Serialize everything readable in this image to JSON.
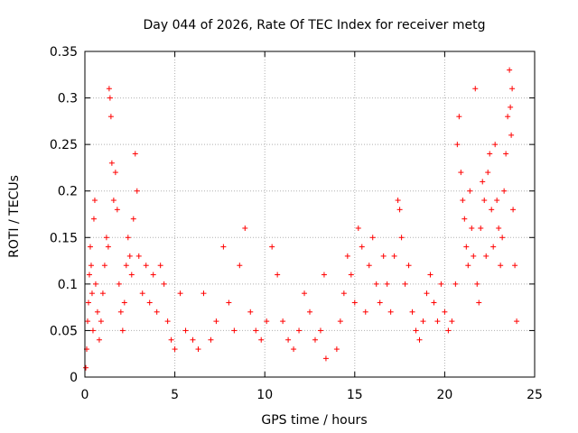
{
  "chart_data": {
    "type": "scatter",
    "title": "Day 044 of 2026, Rate Of TEC Index for receiver metg",
    "xlabel": "GPS time / hours",
    "ylabel": "ROTI / TECUs",
    "xlim": [
      0,
      25
    ],
    "ylim": [
      0,
      0.35
    ],
    "xticks": [
      0,
      5,
      10,
      15,
      20,
      25
    ],
    "yticks": [
      0,
      0.05,
      0.1,
      0.15,
      0.2,
      0.25,
      0.3,
      0.35
    ],
    "grid": true,
    "marker": "+",
    "color": "#ff0000",
    "series": [
      {
        "points": [
          [
            0.05,
            0.01
          ],
          [
            0.1,
            0.03
          ],
          [
            0.15,
            0.06
          ],
          [
            0.2,
            0.08
          ],
          [
            0.25,
            0.11
          ],
          [
            0.3,
            0.14
          ],
          [
            0.35,
            0.12
          ],
          [
            0.4,
            0.09
          ],
          [
            0.45,
            0.05
          ],
          [
            0.5,
            0.17
          ],
          [
            0.55,
            0.19
          ],
          [
            0.6,
            0.1
          ],
          [
            0.7,
            0.07
          ],
          [
            0.8,
            0.04
          ],
          [
            0.9,
            0.06
          ],
          [
            1.0,
            0.09
          ],
          [
            1.1,
            0.12
          ],
          [
            1.2,
            0.15
          ],
          [
            1.3,
            0.14
          ],
          [
            1.35,
            0.31
          ],
          [
            1.4,
            0.3
          ],
          [
            1.45,
            0.28
          ],
          [
            1.5,
            0.23
          ],
          [
            1.6,
            0.19
          ],
          [
            1.7,
            0.22
          ],
          [
            1.8,
            0.18
          ],
          [
            1.9,
            0.1
          ],
          [
            2.0,
            0.07
          ],
          [
            2.1,
            0.05
          ],
          [
            2.2,
            0.08
          ],
          [
            2.3,
            0.12
          ],
          [
            2.4,
            0.15
          ],
          [
            2.5,
            0.13
          ],
          [
            2.6,
            0.11
          ],
          [
            2.7,
            0.17
          ],
          [
            2.8,
            0.24
          ],
          [
            2.9,
            0.2
          ],
          [
            3.0,
            0.13
          ],
          [
            3.2,
            0.09
          ],
          [
            3.4,
            0.12
          ],
          [
            3.6,
            0.08
          ],
          [
            3.8,
            0.11
          ],
          [
            4.0,
            0.07
          ],
          [
            4.2,
            0.12
          ],
          [
            4.4,
            0.1
          ],
          [
            4.6,
            0.06
          ],
          [
            4.8,
            0.04
          ],
          [
            5.0,
            0.03
          ],
          [
            5.3,
            0.09
          ],
          [
            5.6,
            0.05
          ],
          [
            6.0,
            0.04
          ],
          [
            6.3,
            0.03
          ],
          [
            6.6,
            0.09
          ],
          [
            7.0,
            0.04
          ],
          [
            7.3,
            0.06
          ],
          [
            7.7,
            0.14
          ],
          [
            8.0,
            0.08
          ],
          [
            8.3,
            0.05
          ],
          [
            8.6,
            0.12
          ],
          [
            8.9,
            0.16
          ],
          [
            9.2,
            0.07
          ],
          [
            9.5,
            0.05
          ],
          [
            9.8,
            0.04
          ],
          [
            10.1,
            0.06
          ],
          [
            10.4,
            0.14
          ],
          [
            10.7,
            0.11
          ],
          [
            11.0,
            0.06
          ],
          [
            11.3,
            0.04
          ],
          [
            11.6,
            0.03
          ],
          [
            11.9,
            0.05
          ],
          [
            12.2,
            0.09
          ],
          [
            12.5,
            0.07
          ],
          [
            12.8,
            0.04
          ],
          [
            13.1,
            0.05
          ],
          [
            13.3,
            0.11
          ],
          [
            13.4,
            0.02
          ],
          [
            14.0,
            0.03
          ],
          [
            14.2,
            0.06
          ],
          [
            14.4,
            0.09
          ],
          [
            14.6,
            0.13
          ],
          [
            14.8,
            0.11
          ],
          [
            15.0,
            0.08
          ],
          [
            15.2,
            0.16
          ],
          [
            15.4,
            0.14
          ],
          [
            15.6,
            0.07
          ],
          [
            15.8,
            0.12
          ],
          [
            16.0,
            0.15
          ],
          [
            16.2,
            0.1
          ],
          [
            16.4,
            0.08
          ],
          [
            16.6,
            0.13
          ],
          [
            16.8,
            0.1
          ],
          [
            17.0,
            0.07
          ],
          [
            17.2,
            0.13
          ],
          [
            17.4,
            0.19
          ],
          [
            17.5,
            0.18
          ],
          [
            17.6,
            0.15
          ],
          [
            17.8,
            0.1
          ],
          [
            18.0,
            0.12
          ],
          [
            18.2,
            0.07
          ],
          [
            18.4,
            0.05
          ],
          [
            18.6,
            0.04
          ],
          [
            18.8,
            0.06
          ],
          [
            19.0,
            0.09
          ],
          [
            19.2,
            0.11
          ],
          [
            19.4,
            0.08
          ],
          [
            19.6,
            0.06
          ],
          [
            19.8,
            0.1
          ],
          [
            20.0,
            0.07
          ],
          [
            20.2,
            0.05
          ],
          [
            20.4,
            0.06
          ],
          [
            20.6,
            0.1
          ],
          [
            20.7,
            0.25
          ],
          [
            20.8,
            0.28
          ],
          [
            20.9,
            0.22
          ],
          [
            21.0,
            0.19
          ],
          [
            21.1,
            0.17
          ],
          [
            21.2,
            0.14
          ],
          [
            21.3,
            0.12
          ],
          [
            21.4,
            0.2
          ],
          [
            21.5,
            0.16
          ],
          [
            21.6,
            0.13
          ],
          [
            21.7,
            0.31
          ],
          [
            21.8,
            0.1
          ],
          [
            21.9,
            0.08
          ],
          [
            22.0,
            0.16
          ],
          [
            22.1,
            0.21
          ],
          [
            22.2,
            0.19
          ],
          [
            22.3,
            0.13
          ],
          [
            22.4,
            0.22
          ],
          [
            22.5,
            0.24
          ],
          [
            22.6,
            0.18
          ],
          [
            22.7,
            0.14
          ],
          [
            22.8,
            0.25
          ],
          [
            22.9,
            0.19
          ],
          [
            23.0,
            0.16
          ],
          [
            23.1,
            0.12
          ],
          [
            23.2,
            0.15
          ],
          [
            23.3,
            0.2
          ],
          [
            23.4,
            0.24
          ],
          [
            23.5,
            0.28
          ],
          [
            23.6,
            0.33
          ],
          [
            23.65,
            0.29
          ],
          [
            23.7,
            0.26
          ],
          [
            23.75,
            0.31
          ],
          [
            23.8,
            0.18
          ],
          [
            23.9,
            0.12
          ],
          [
            24.0,
            0.06
          ]
        ]
      }
    ]
  }
}
